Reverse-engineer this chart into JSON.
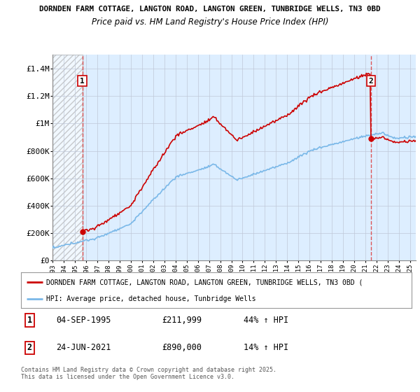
{
  "title1": "DORNDEN FARM COTTAGE, LANGTON ROAD, LANGTON GREEN, TUNBRIDGE WELLS, TN3 0BD",
  "title2": "Price paid vs. HM Land Registry's House Price Index (HPI)",
  "ylim": [
    0,
    1500000
  ],
  "yticks": [
    0,
    200000,
    400000,
    600000,
    800000,
    1000000,
    1200000,
    1400000
  ],
  "ytick_labels": [
    "£0",
    "£200K",
    "£400K",
    "£600K",
    "£800K",
    "£1M",
    "£1.2M",
    "£1.4M"
  ],
  "sale1_date_num": 1995.67,
  "sale1_price": 211999,
  "sale1_label": "1",
  "sale2_date_num": 2021.48,
  "sale2_price": 890000,
  "sale2_label": "2",
  "hpi_line_color": "#7ab8e8",
  "price_line_color": "#cc0000",
  "vline_color": "#dd4444",
  "background_color": "#ddeeff",
  "grid_color": "#c0c8d8",
  "legend_entry1": "DORNDEN FARM COTTAGE, LANGTON ROAD, LANGTON GREEN, TUNBRIDGE WELLS, TN3 0BD (",
  "legend_entry2": "HPI: Average price, detached house, Tunbridge Wells",
  "annotation1_date": "04-SEP-1995",
  "annotation1_price": "£211,999",
  "annotation1_hpi": "44% ↑ HPI",
  "annotation2_date": "24-JUN-2021",
  "annotation2_price": "£890,000",
  "annotation2_hpi": "14% ↑ HPI",
  "footer": "Contains HM Land Registry data © Crown copyright and database right 2025.\nThis data is licensed under the Open Government Licence v3.0.",
  "xstart": 1993.0,
  "xend": 2025.5
}
